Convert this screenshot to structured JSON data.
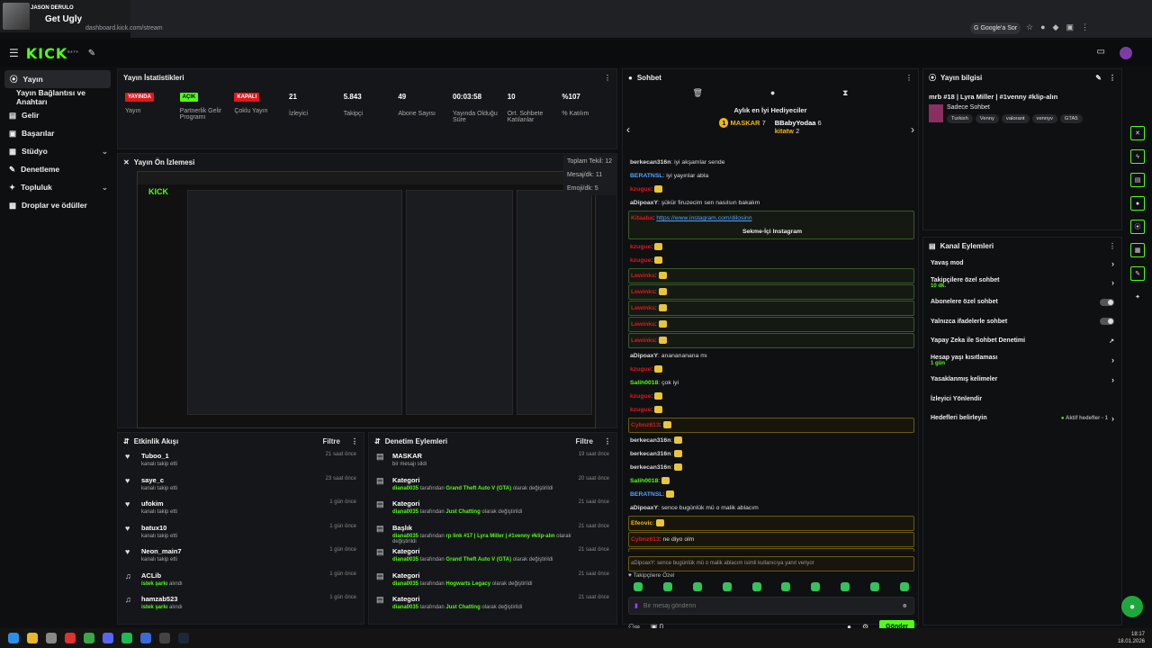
{
  "media": {
    "artist": "JASON DERULO",
    "song": "Get Ugly"
  },
  "browser": {
    "url": "dashboard.kick.com/stream",
    "google_sor": "Google'a Sor"
  },
  "header": {
    "logo": "KICK",
    "logo_sup": "BETA"
  },
  "sidebar": {
    "items": [
      {
        "label": "Yayın"
      },
      {
        "label": "Yayın Bağlantısı ve Anahtarı"
      },
      {
        "label": "Gelir"
      },
      {
        "label": "Başarılar"
      },
      {
        "label": "Stüdyo"
      },
      {
        "label": "Denetleme"
      },
      {
        "label": "Topluluk"
      },
      {
        "label": "Droplar ve ödüller"
      }
    ]
  },
  "stats": {
    "title": "Yayın İstatistikleri",
    "items": [
      {
        "badge": "YAYINDA",
        "label": "Yayın"
      },
      {
        "badge": "AÇIK",
        "label": "Partnerlik Gelir Programı"
      },
      {
        "badge": "KAPALI",
        "label": "Çoklu Yayın"
      },
      {
        "value": "21",
        "label": "İzleyici"
      },
      {
        "value": "5.843",
        "label": "Takipçi"
      },
      {
        "value": "49",
        "label": "Abone Sayısı"
      },
      {
        "value": "00:03:58",
        "label": "Yayında Olduğu Süre"
      },
      {
        "value": "10",
        "label": "Ort. Sohbete Katılanlar"
      },
      {
        "value": "%107",
        "label": "% Katılım"
      }
    ]
  },
  "preview": {
    "title": "Yayın Ön İzlemesi",
    "total": "Toplam Tekil: 12",
    "per_msg": "Mesaj/dk: 11",
    "emoji": "Emoji/dk: 5"
  },
  "activity": {
    "title": "Etkinlik Akışı",
    "filter": "Filtre",
    "items": [
      {
        "name": "Tuboo_1",
        "sub": "kanalı takip etti",
        "time": "21 saat önce"
      },
      {
        "name": "saye_c",
        "sub": "kanalı takip etti",
        "time": "23 saat önce"
      },
      {
        "name": "ufokim",
        "sub": "kanalı takip etti",
        "time": "1 gün önce"
      },
      {
        "name": "batux10",
        "sub": "kanalı takip etti",
        "time": "1 gün önce"
      },
      {
        "name": "Neon_main7",
        "sub": "kanalı takip etti",
        "time": "1 gün önce"
      },
      {
        "name": "ACLib",
        "sub_g": "istek şarkı",
        "sub": "alındı",
        "time": "1 gün önce"
      },
      {
        "name": "hamzab523",
        "sub_g": "istek şarkı",
        "sub": "alındı",
        "time": "1 gün önce"
      }
    ]
  },
  "moderation": {
    "title": "Denetim Eylemleri",
    "filter": "Filtre",
    "items": [
      {
        "name": "MASKAR",
        "sub": "bir mesajı sildi",
        "time": "19 saat önce"
      },
      {
        "name": "Kategori",
        "who": "diana0035",
        "mid": "tarafından",
        "val": "Grand Theft Auto V (GTA)",
        "end": "olarak değiştirildi",
        "time": "20 saat önce"
      },
      {
        "name": "Kategori",
        "who": "diana0035",
        "mid": "tarafından",
        "val": "Just Chatting",
        "end": "olarak değiştirildi",
        "time": "21 saat önce"
      },
      {
        "name": "Başlık",
        "who": "diana0035",
        "mid": "tarafından",
        "val": "rp link #17 | Lyra Miller | #1venny #klip-alın",
        "end": "olarak değiştirildi",
        "time": "21 saat önce"
      },
      {
        "name": "Kategori",
        "who": "diana0035",
        "mid": "tarafından",
        "val": "Grand Theft Auto V (GTA)",
        "end": "olarak değiştirildi",
        "time": "21 saat önce"
      },
      {
        "name": "Kategori",
        "who": "diana0035",
        "mid": "tarafından",
        "val": "Hogwarts Legacy",
        "end": "olarak değiştirildi",
        "time": "21 saat önce"
      },
      {
        "name": "Kategori",
        "who": "diana0035",
        "mid": "tarafından",
        "val": "Just Chatting",
        "end": "olarak değiştirildi",
        "time": "21 saat önce"
      }
    ]
  },
  "chat": {
    "title": "Sohbet",
    "gifters_title": "Aylık en İyi Hediyeciler",
    "gifters": [
      {
        "rank": "1",
        "name": "MASKAR",
        "count": "7"
      },
      {
        "name": "BBabyYodaa",
        "count": "6"
      },
      {
        "name": "kitatw",
        "count": "2"
      }
    ],
    "messages": [
      {
        "user": "berkecan316n",
        "text": "iyi akşamlar sende",
        "color": "#dddddd"
      },
      {
        "user": "BERATNSL",
        "text": "iyi yayınlar abla",
        "color": "#4fa3ff"
      },
      {
        "user": "kzugue",
        "text": "",
        "color": "#e0181e",
        "emo": true
      },
      {
        "user": "aDipoaxY",
        "text": "şükür firuzecim sen nasılsın bakalım",
        "color": "#dddddd"
      },
      {
        "user": "Kitaaba",
        "link": "https://www.instagram.com/dilosinn",
        "color": "#e0181e",
        "hl": true
      },
      {
        "user": "kzugue",
        "text": "",
        "color": "#e0181e",
        "emo": true
      },
      {
        "user": "kzugue",
        "text": "",
        "color": "#e0181e",
        "emo": true
      },
      {
        "user": "Lewinks",
        "text": "",
        "color": "#e0181e",
        "emo": true,
        "hl": true
      },
      {
        "user": "Lewinks",
        "text": "",
        "color": "#e0181e",
        "emo": true,
        "hl": true
      },
      {
        "user": "Lewinks",
        "text": "",
        "color": "#e0181e",
        "emo": true,
        "hl": true
      },
      {
        "user": "Lewinks",
        "text": "",
        "color": "#e0181e",
        "emo": true,
        "hl": true
      },
      {
        "user": "Lewinks",
        "text": "",
        "color": "#e0181e",
        "emo": true,
        "hl": true
      },
      {
        "user": "aDipoaxY",
        "text": "ananananana mı",
        "color": "#dddddd"
      },
      {
        "user": "kzugue",
        "text": "",
        "color": "#e0181e",
        "emo": true
      },
      {
        "user": "Salih0018",
        "text": "çok iyi",
        "color": "#53fc18"
      },
      {
        "user": "kzugue",
        "text": "",
        "color": "#e0181e",
        "emo": true
      },
      {
        "user": "kzugue",
        "text": "",
        "color": "#e0181e",
        "emo": true
      },
      {
        "user": "Cybnz613",
        "text": "",
        "color": "#e0181e",
        "emo": true,
        "hly": true
      },
      {
        "user": "berkecan316n",
        "text": "",
        "color": "#dddddd",
        "emo": true
      },
      {
        "user": "berkecan316n",
        "text": "",
        "color": "#dddddd",
        "emo": true
      },
      {
        "user": "berkecan316n",
        "text": "",
        "color": "#dddddd",
        "emo": true
      },
      {
        "user": "Salih0018",
        "text": "",
        "color": "#53fc18",
        "emo": true
      },
      {
        "user": "BERATNSL",
        "text": "",
        "color": "#4fa3ff",
        "emo": true
      },
      {
        "user": "aDipoaxY",
        "text": "sence bugünlük mü o malik ablacım",
        "color": "#dddddd"
      },
      {
        "user": "Efeovic",
        "text": "",
        "color": "#f0b90b",
        "emo": true,
        "hly": true
      },
      {
        "user": "Cybnz613",
        "text": "ne diyo olm",
        "color": "#e0181e",
        "hly": true
      },
      {
        "user": "Efeovic",
        "text": "hojbuldum",
        "color": "#f0b90b",
        "hly": true
      }
    ],
    "insta_button": "Sekme-İçi Instagram",
    "reply_note": "aDipoaxY: sence bugünlük mü o malik ablacım isimli kullanıcıya yanıt veriyor",
    "followers_only": "Takipçilere Özel",
    "placeholder": "Bir mesaj gönderin",
    "count": "0",
    "send": "Gönder"
  },
  "info": {
    "title": "Yayın bilgisi",
    "stream_title": "mrb #18 | Lyra Miller | #1venny #klip-alın",
    "category": "Sadece Sohbet",
    "tags": [
      "Turkish",
      "Venny",
      "valorant",
      "vennyv",
      "GTA5"
    ]
  },
  "channel_actions": {
    "title": "Kanal Eylemleri",
    "items": [
      {
        "label": "Yavaş mod",
        "type": "arrow"
      },
      {
        "label": "Takipçilere özel sohbet",
        "sub": "10 dk.",
        "type": "arrow"
      },
      {
        "label": "Abonelere özel sohbet",
        "type": "toggle"
      },
      {
        "label": "Yalnızca ifadelerle sohbet",
        "type": "toggle"
      },
      {
        "label": "Yapay Zeka ile Sohbet Denetimi",
        "type": "ext"
      },
      {
        "label": "Hesap yaşı kısıtlaması",
        "sub": "1 gün",
        "type": "arrow"
      },
      {
        "label": "Yasaklanmış kelimeler",
        "type": "arrow"
      },
      {
        "label": "İzleyici Yönlendir",
        "type": "none"
      },
      {
        "label": "Hedefleri belirleyin",
        "aktif": "Aktif hedefler - 1",
        "type": "arrow"
      }
    ]
  },
  "tray": {
    "time": "18:17",
    "date": "18.01.2026"
  },
  "colors": {
    "accent": "#53fc18",
    "live": "#e0181e"
  }
}
